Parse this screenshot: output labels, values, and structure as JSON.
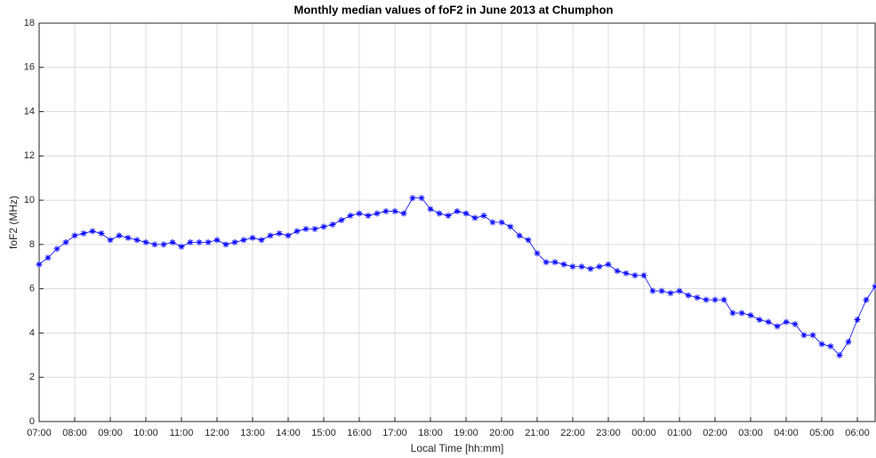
{
  "chart_data": {
    "type": "line",
    "title": "Monthly median values of foF2 in June 2013 at Chumphon",
    "x_label": "Local Time [hh:mm]",
    "y_label": "foF2 (MHz)",
    "x": [
      "07:00",
      "07:15",
      "07:30",
      "07:45",
      "08:00",
      "08:15",
      "08:30",
      "08:45",
      "09:00",
      "09:15",
      "09:30",
      "09:45",
      "10:00",
      "10:15",
      "10:30",
      "10:45",
      "11:00",
      "11:15",
      "11:30",
      "11:45",
      "12:00",
      "12:15",
      "12:30",
      "12:45",
      "13:00",
      "13:15",
      "13:30",
      "13:45",
      "14:00",
      "14:15",
      "14:30",
      "14:45",
      "15:00",
      "15:15",
      "15:30",
      "15:45",
      "16:00",
      "16:15",
      "16:30",
      "16:45",
      "17:00",
      "17:15",
      "17:30",
      "17:45",
      "18:00",
      "18:15",
      "18:30",
      "18:45",
      "19:00",
      "19:15",
      "19:30",
      "19:45",
      "20:00",
      "20:15",
      "20:30",
      "20:45",
      "21:00",
      "21:15",
      "21:30",
      "21:45",
      "22:00",
      "22:15",
      "22:30",
      "22:45",
      "23:00",
      "23:15",
      "23:30",
      "23:45",
      "00:00",
      "00:15",
      "00:30",
      "00:45",
      "01:00",
      "01:15",
      "01:30",
      "01:45",
      "02:00",
      "02:15",
      "02:30",
      "02:45",
      "03:00",
      "03:15",
      "03:30",
      "03:45",
      "04:00",
      "04:15",
      "04:30",
      "04:45",
      "05:00",
      "05:15",
      "05:30",
      "05:45",
      "06:00",
      "06:15",
      "06:30"
    ],
    "series": [
      {
        "color": "#0000ff",
        "values": [
          7.1,
          7.4,
          7.8,
          8.1,
          8.4,
          8.5,
          8.6,
          8.5,
          8.2,
          8.4,
          8.3,
          8.2,
          8.1,
          8.0,
          8.0,
          8.1,
          7.9,
          8.1,
          8.1,
          8.1,
          8.2,
          8.0,
          8.1,
          8.2,
          8.3,
          8.2,
          8.4,
          8.5,
          8.4,
          8.6,
          8.7,
          8.7,
          8.8,
          8.9,
          9.1,
          9.3,
          9.4,
          9.3,
          9.4,
          9.5,
          9.5,
          9.4,
          10.1,
          10.1,
          9.6,
          9.4,
          9.3,
          9.5,
          9.4,
          9.2,
          9.3,
          9.0,
          9.0,
          8.8,
          8.4,
          8.2,
          7.6,
          7.2,
          7.2,
          7.1,
          7.0,
          7.0,
          6.9,
          7.0,
          7.1,
          6.8,
          6.7,
          6.6,
          6.6,
          5.9,
          5.9,
          5.8,
          5.9,
          5.7,
          5.6,
          5.5,
          5.5,
          5.5,
          4.9,
          4.9,
          4.8,
          4.6,
          4.5,
          4.3,
          4.5,
          4.4,
          3.9,
          3.9,
          3.5,
          3.4,
          3.0,
          3.6,
          4.6,
          5.5,
          6.1
        ]
      }
    ],
    "xlim": [
      "07:00",
      "06:30"
    ],
    "xticks": [
      "07:00",
      "08:00",
      "09:00",
      "10:00",
      "11:00",
      "12:00",
      "13:00",
      "14:00",
      "15:00",
      "16:00",
      "17:00",
      "18:00",
      "19:00",
      "20:00",
      "21:00",
      "22:00",
      "23:00",
      "00:00",
      "01:00",
      "02:00",
      "03:00",
      "04:00",
      "05:00",
      "06:00"
    ],
    "ylim": [
      0,
      18
    ],
    "yticks": [
      0,
      2,
      4,
      6,
      8,
      10,
      12,
      14,
      16,
      18
    ],
    "grid": true,
    "marker": "asterisk"
  }
}
